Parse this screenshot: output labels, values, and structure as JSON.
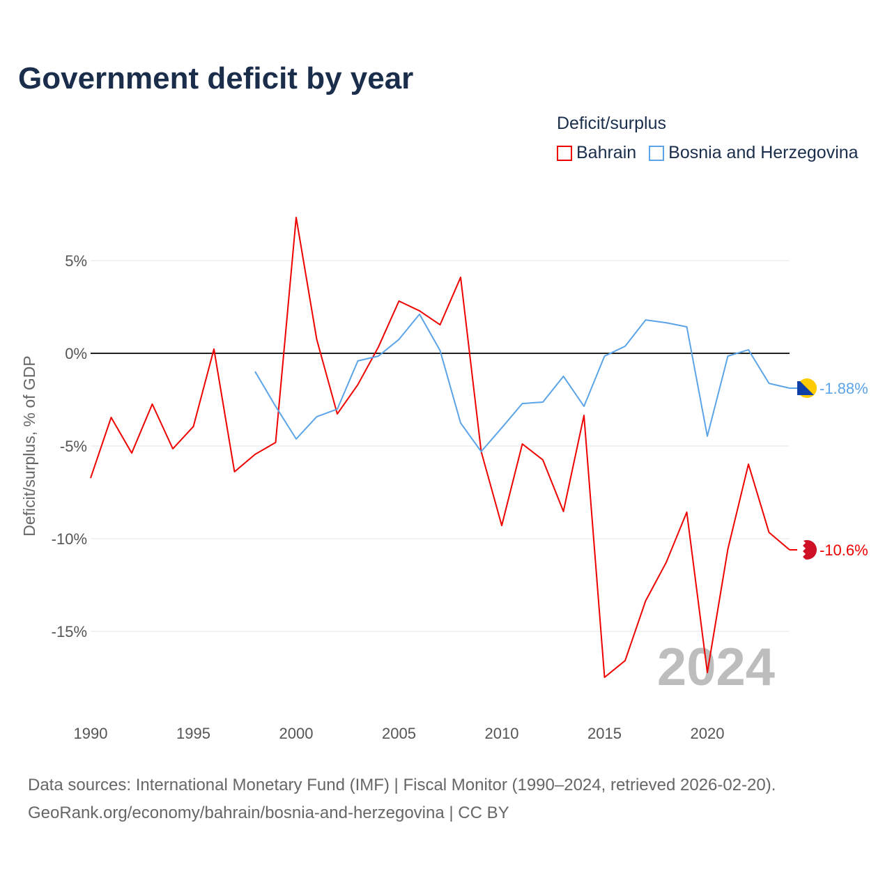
{
  "title": "Government deficit by year",
  "legend": {
    "title": "Deficit/surplus",
    "items": [
      {
        "label": "Bahrain",
        "color": "#ee0000"
      },
      {
        "label": "Bosnia and Herzegovina",
        "color": "#5ba4e8"
      }
    ]
  },
  "chart_data": {
    "type": "line",
    "title": "Government deficit by year",
    "xlabel": "",
    "ylabel": "Deficit/surplus, % of GDP",
    "xlim": [
      1990,
      2024
    ],
    "ylim": [
      -19,
      8
    ],
    "x_ticks": [
      1990,
      1995,
      2000,
      2005,
      2010,
      2015,
      2020
    ],
    "x_tick_labels": [
      "1990",
      "1995",
      "2000",
      "2005",
      "2010",
      "2015",
      "2020"
    ],
    "y_ticks": [
      5,
      0,
      -5,
      -10,
      -15
    ],
    "y_tick_labels": [
      "5%",
      "0%",
      "-5%",
      "-10%",
      "-15%"
    ],
    "grid": true,
    "legend_position": "top-right",
    "year_watermark": "2024",
    "series": [
      {
        "name": "Bahrain",
        "color": "#ee0000",
        "end_label": "-10.6%",
        "x": [
          1990,
          1991,
          1992,
          1993,
          1994,
          1995,
          1996,
          1997,
          1998,
          1999,
          2000,
          2001,
          2002,
          2003,
          2004,
          2005,
          2006,
          2007,
          2008,
          2009,
          2010,
          2011,
          2012,
          2013,
          2014,
          2015,
          2016,
          2017,
          2018,
          2019,
          2020,
          2021,
          2022,
          2023,
          2024
        ],
        "values": [
          -6.73,
          -3.46,
          -5.38,
          -2.74,
          -5.15,
          -3.95,
          0.23,
          -6.39,
          -5.45,
          -4.81,
          7.33,
          0.75,
          -3.27,
          -1.69,
          0.34,
          2.82,
          2.29,
          1.54,
          4.1,
          -5.3,
          -9.29,
          -4.89,
          -5.75,
          -8.53,
          -3.35,
          -17.48,
          -16.58,
          -13.35,
          -11.28,
          -8.57,
          -17.22,
          -10.56,
          -5.98,
          -9.66,
          -10.6
        ]
      },
      {
        "name": "Bosnia and Herzegovina",
        "color": "#5ba4e8",
        "end_label": "-1.88%",
        "x": [
          1998,
          1999,
          2000,
          2001,
          2002,
          2003,
          2004,
          2005,
          2006,
          2007,
          2008,
          2009,
          2010,
          2011,
          2012,
          2013,
          2014,
          2015,
          2016,
          2017,
          2018,
          2019,
          2020,
          2021,
          2022,
          2023,
          2024
        ],
        "values": [
          -0.98,
          -2.86,
          -4.62,
          -3.42,
          -3.01,
          -0.41,
          -0.15,
          0.75,
          2.11,
          0.15,
          -3.76,
          -5.3,
          -4.02,
          -2.71,
          -2.63,
          -1.24,
          -2.86,
          -0.15,
          0.38,
          1.8,
          1.65,
          1.43,
          -4.47,
          -0.15,
          0.19,
          -1.62,
          -1.88
        ]
      }
    ]
  },
  "footer": {
    "line1": "Data sources: International Monetary Fund (IMF) | Fiscal Monitor (1990–2024, retrieved 2026-02-20).",
    "line2": "GeoRank.org/economy/bahrain/bosnia-and-herzegovina | CC BY"
  }
}
